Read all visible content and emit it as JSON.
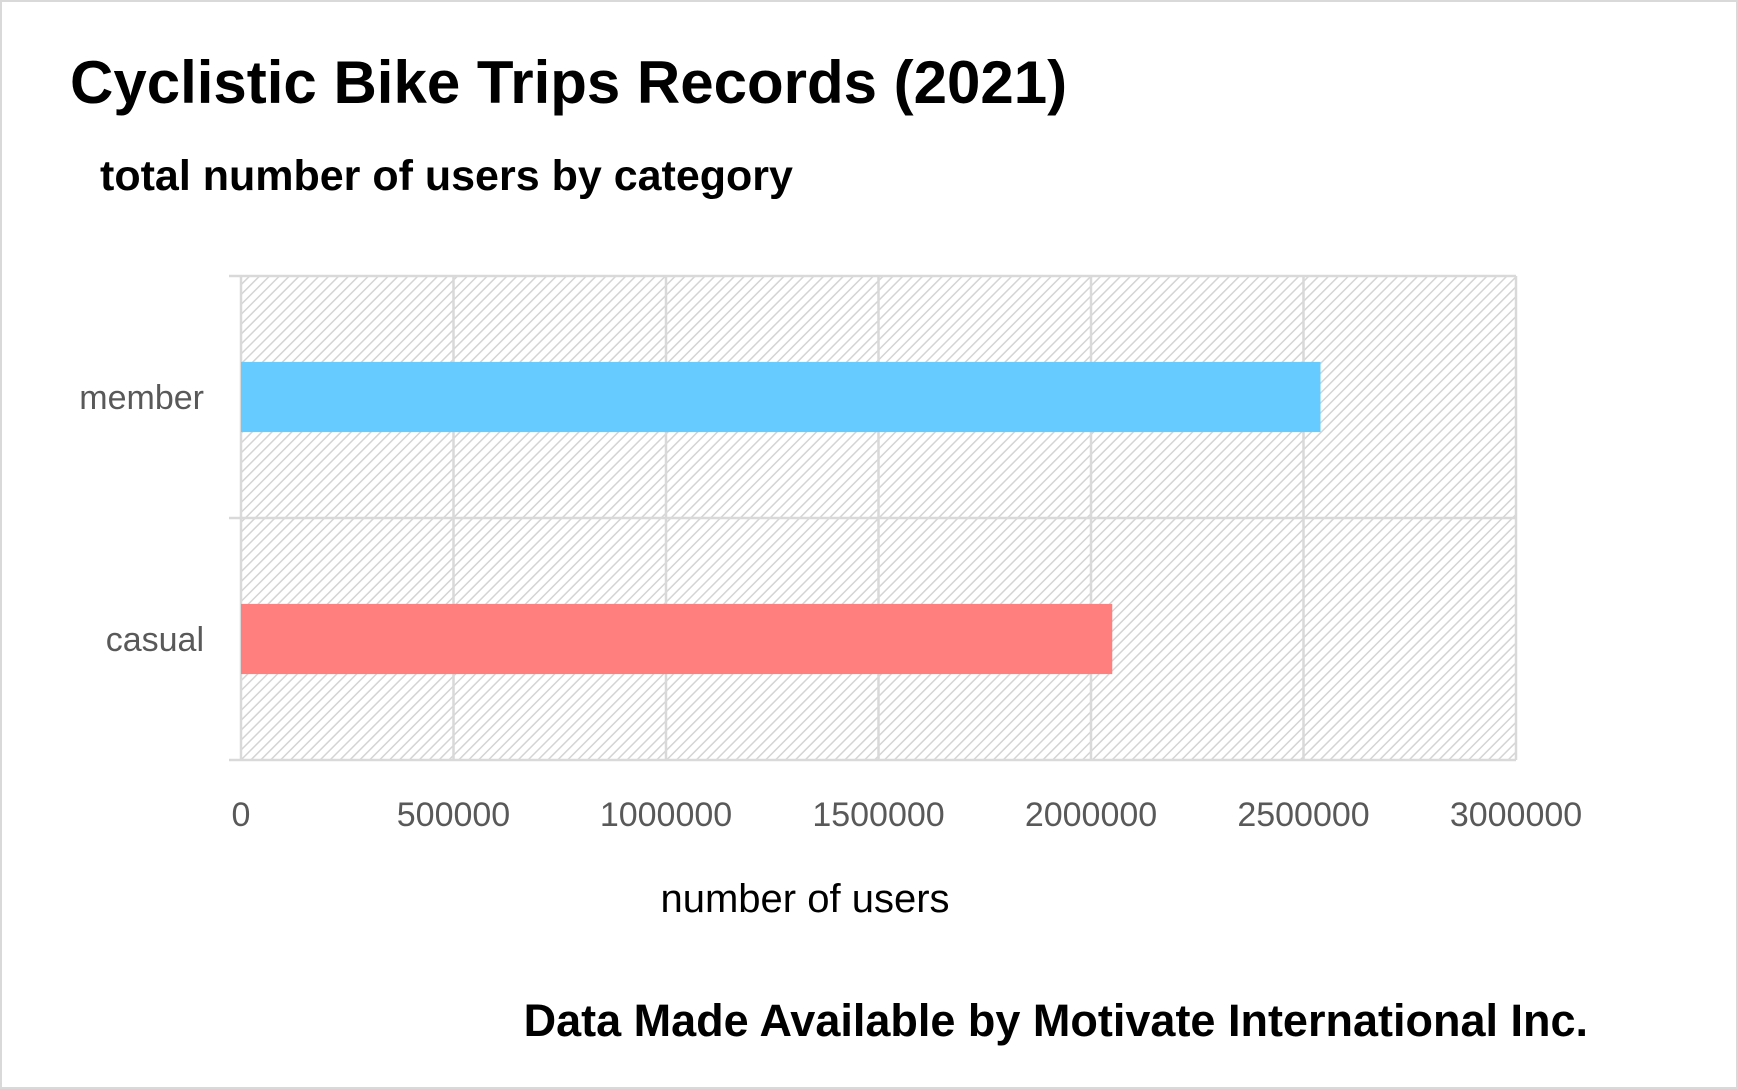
{
  "chart_data": {
    "type": "bar",
    "orientation": "horizontal",
    "title": "Cyclistic Bike Trips Records (2021)",
    "subtitle": "total number of users by category",
    "xlabel": "number of users",
    "ylabel": "",
    "categories": [
      "member",
      "casual"
    ],
    "values": [
      2540000,
      2050000
    ],
    "colors": [
      "#66CCFF",
      "#FF7F7F"
    ],
    "xlim": [
      0,
      3000000
    ],
    "xticks": [
      0,
      500000,
      1000000,
      1500000,
      2000000,
      2500000,
      3000000
    ],
    "xtick_labels": [
      "0",
      "500000",
      "1000000",
      "1500000",
      "2000000",
      "2500000",
      "3000000"
    ],
    "grid": true,
    "plot_background": "hatched light gray",
    "legend": "none",
    "source_note": "Data Made Available by Motivate International Inc."
  }
}
